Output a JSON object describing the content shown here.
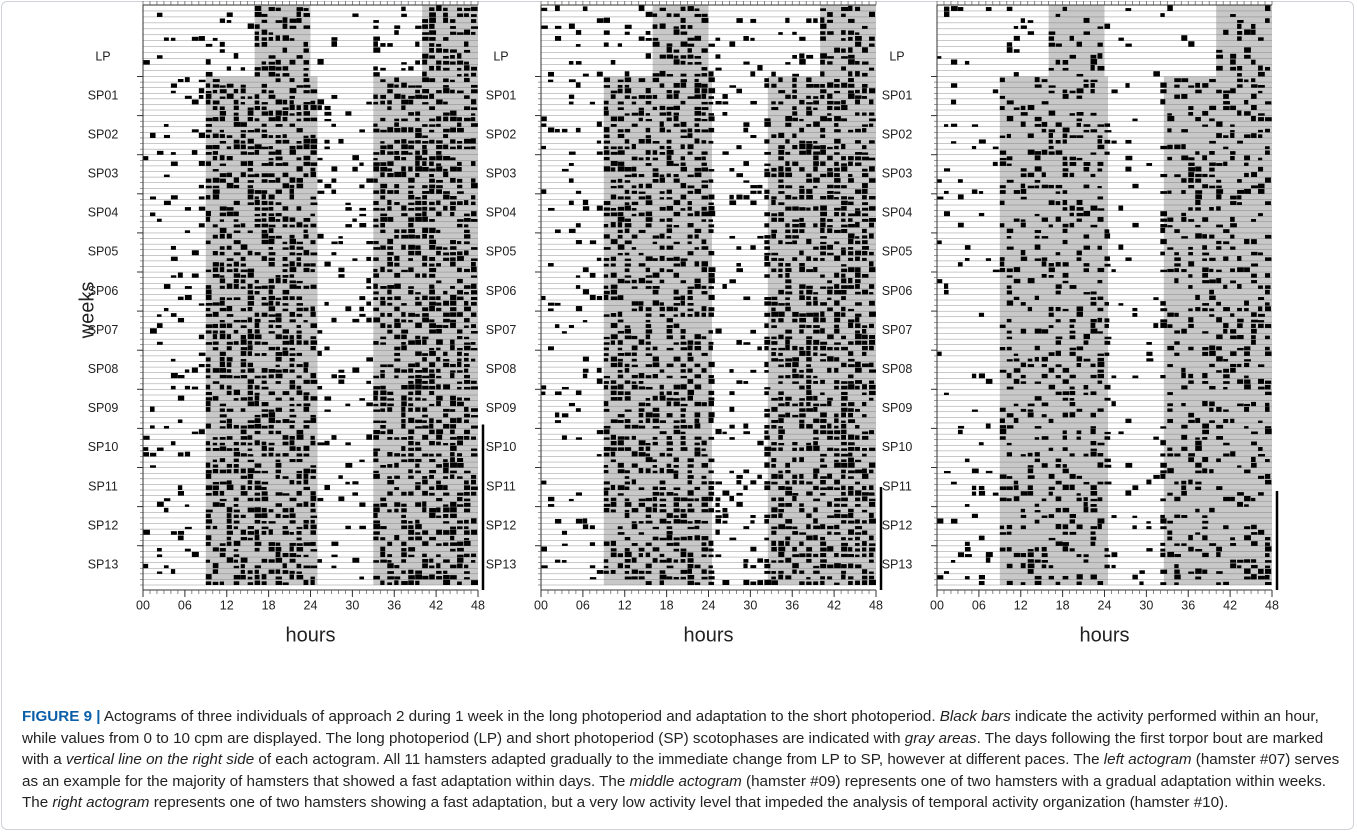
{
  "panels": [
    {
      "row_labels": [
        "LP",
        "SP01",
        "SP02",
        "SP03",
        "SP04",
        "SP05",
        "SP06",
        "SP07",
        "SP08",
        "SP09",
        "SP10",
        "SP11",
        "SP12",
        "SP13"
      ],
      "y_axis_label": "weeks",
      "x_axis_label": "hours",
      "xlim": [
        0,
        48
      ],
      "xticks": [
        {
          "value": 0,
          "label": "00"
        },
        {
          "value": 6,
          "label": "06"
        },
        12,
        18,
        24,
        30,
        36,
        42,
        48
      ],
      "lp_scotophase": [
        [
          16,
          24
        ],
        [
          40,
          48
        ]
      ],
      "sp_scotophase": [
        [
          9,
          25
        ],
        [
          33,
          48
        ]
      ],
      "torpor_from_week": 9.9
    },
    {
      "row_labels": [
        "LP",
        "SP01",
        "SP02",
        "SP03",
        "SP04",
        "SP05",
        "SP06",
        "SP07",
        "SP08",
        "SP09",
        "SP10",
        "SP11",
        "SP12",
        "SP13"
      ],
      "x_axis_label": "hours",
      "xlim": [
        0,
        48
      ],
      "xticks": [
        {
          "value": 0,
          "label": "00"
        },
        {
          "value": 6,
          "label": "06"
        },
        12,
        18,
        24,
        30,
        36,
        42,
        48
      ],
      "lp_scotophase": [
        [
          16,
          24
        ],
        [
          40,
          48
        ]
      ],
      "sp_scotophase": [
        [
          9,
          24.5
        ],
        [
          32.5,
          48
        ]
      ],
      "torpor_from_week": 11.5
    },
    {
      "row_labels": [
        "LP",
        "SP01",
        "SP02",
        "SP03",
        "SP04",
        "SP05",
        "SP06",
        "SP07",
        "SP08",
        "SP09",
        "SP10",
        "SP11",
        "SP12",
        "SP13"
      ],
      "x_axis_label": "hours",
      "xlim": [
        0,
        48
      ],
      "xticks": [
        {
          "value": 0,
          "label": "00"
        },
        {
          "value": 6,
          "label": "06"
        },
        12,
        18,
        24,
        30,
        36,
        42,
        48
      ],
      "lp_scotophase": [
        [
          16,
          24
        ],
        [
          40,
          48
        ]
      ],
      "sp_scotophase": [
        [
          9,
          24.5
        ],
        [
          32.5,
          48
        ]
      ],
      "torpor_from_week": 11.6
    }
  ],
  "caption": {
    "parts": [
      "FIGURE 9 |",
      " Actograms of three individuals of approach 2 during 1 week in the long photoperiod and adaptation to the short photoperiod. ",
      "Black bars",
      " indicate the activity performed within an hour, while values from 0 to 10 cpm are displayed. The long photoperiod (LP) and short photoperiod (SP) scotophases are indicated with ",
      "gray areas",
      ". The days following the first torpor bout are marked with a ",
      "vertical line on the right side",
      " of each actogram. All 11 hamsters adapted gradually to the immediate change from LP to SP, however at different paces. The ",
      "left actogram",
      " (hamster #07) serves as an example for the majority of hamsters that showed a fast adaptation within days. The ",
      "middle actogram",
      " (hamster #09) represents one of two hamsters with a gradual adaptation within weeks. The ",
      "right actogram",
      " represents one of two hamsters showing a fast adaptation, but a very low activity level that impeded the analysis of temporal activity organization (hamster #10)."
    ]
  }
}
